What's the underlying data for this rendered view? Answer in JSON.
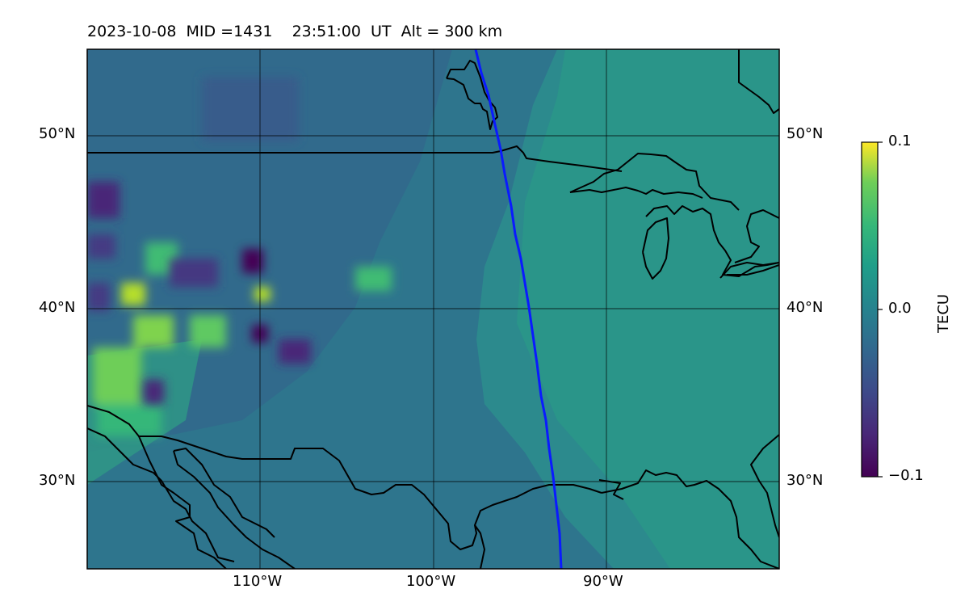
{
  "map": {
    "title": "2023-10-08  MID =1431    23:51:00  UT  Alt = 300 km",
    "lon_ticks": [
      "110°W",
      "100°W",
      "90°W"
    ],
    "lat_ticks": [
      "50°N",
      "40°N",
      "30°N"
    ],
    "extent": {
      "lon": [
        -120,
        -80
      ],
      "lat": [
        25,
        55
      ]
    },
    "colors": {
      "background": "#2c8a8d",
      "low": "#440154",
      "high": "#fde725",
      "coast": "#000000",
      "track": "#0a1aff"
    }
  },
  "colorbar": {
    "label": "TECU",
    "ticks": [
      "0.1",
      "0.0",
      "−0.1"
    ],
    "range": [
      -0.1,
      0.1
    ],
    "colormap": "viridis"
  }
}
